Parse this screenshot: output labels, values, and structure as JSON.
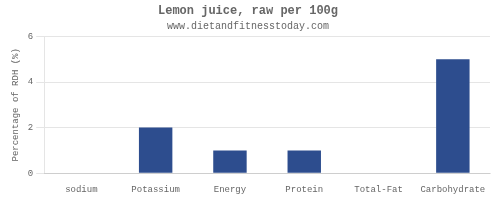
{
  "chart_data": {
    "type": "bar",
    "title": "Lemon juice, raw per 100g",
    "subtitle": "www.dietandfitnesstoday.com",
    "categories": [
      "sodium",
      "Potassium",
      "Energy",
      "Protein",
      "Total-Fat",
      "Carbohydrate"
    ],
    "values": [
      0.0,
      2.0,
      1.0,
      1.0,
      0.0,
      5.0
    ],
    "color": "#2d4d8e",
    "ylabel": "Percentage of RDH (%)",
    "ylim": [
      0,
      6
    ],
    "yticks": [
      0,
      2,
      4,
      6
    ],
    "grid": true
  }
}
